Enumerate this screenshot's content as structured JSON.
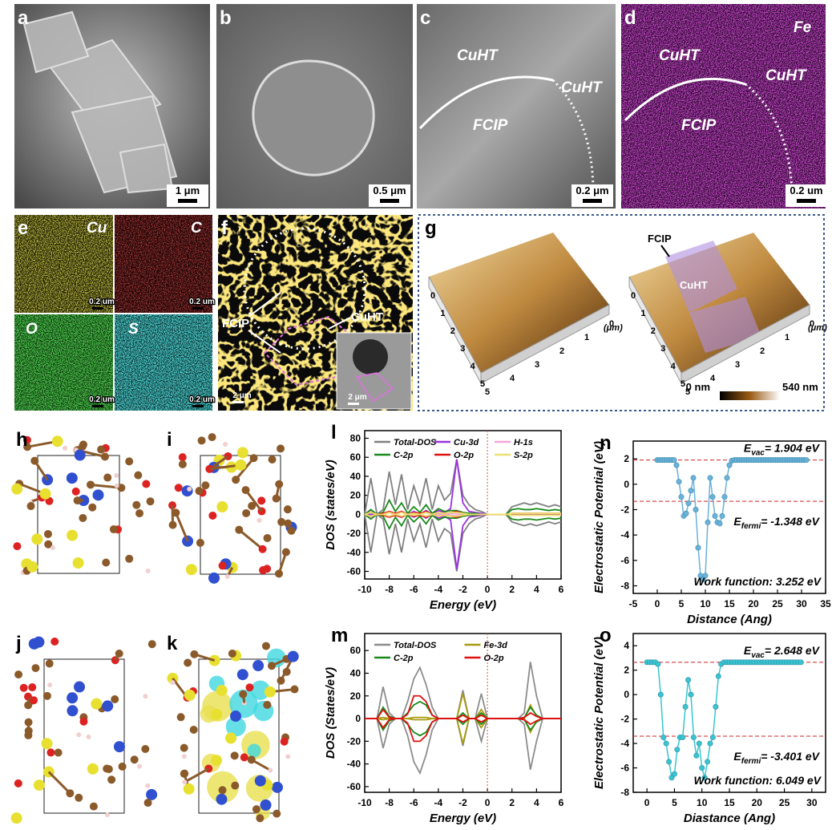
{
  "image_panels": [
    {
      "label": "a",
      "scales": [
        "1 μm"
      ]
    },
    {
      "label": "b",
      "scales": [
        "0.5 μm"
      ]
    },
    {
      "label": "c",
      "texts": [
        "CuHT",
        "CuHT",
        "FCIP"
      ],
      "scales": [
        "0.2 μm"
      ]
    },
    {
      "label": "d",
      "texts": [
        "Fe",
        "CuHT",
        "CuHT",
        "FCIP"
      ],
      "scales": [
        "0.2 um"
      ]
    },
    {
      "label": "e",
      "texts": [
        "Cu",
        "C",
        "O",
        "S"
      ],
      "scales": [
        "0.2 um",
        "0.2 um",
        "0.2 um",
        "0.2 um"
      ]
    },
    {
      "label": "f",
      "texts": [
        "FCIP",
        "CuHT"
      ],
      "scales": [
        "2 μm",
        "2 μm"
      ]
    },
    {
      "label": "g",
      "texts": [
        "FCIP",
        "CuHT",
        "(μm)",
        "(μm)",
        "0 nm",
        "540 nm"
      ],
      "axis_ticks": [
        "0",
        "1",
        "2",
        "3",
        "4",
        "5"
      ]
    },
    {
      "label": "h"
    },
    {
      "label": "i"
    },
    {
      "label": "j"
    },
    {
      "label": "k"
    }
  ],
  "chart_data": [
    {
      "type": "dos",
      "panel": "l",
      "xlabel": "Energy (eV)",
      "ylabel": "DOS (states/eV)",
      "xlim": [
        -10,
        6
      ],
      "xticks": [
        -10,
        -8,
        -6,
        -4,
        -2,
        0,
        2,
        4,
        6
      ],
      "ylim": [
        -68,
        88
      ],
      "yticks": [
        -60,
        -40,
        -20,
        0,
        20,
        40,
        60,
        80
      ],
      "reference_x": 0,
      "reference_color": "#e05050",
      "x": [
        -10,
        -9.5,
        -9,
        -8.5,
        -8,
        -7.5,
        -7,
        -6.5,
        -6,
        -5.5,
        -5,
        -4.5,
        -4,
        -3.5,
        -3,
        -2.5,
        -2,
        -1.5,
        -1,
        -0.5,
        0,
        0.5,
        1,
        1.5,
        2,
        2.5,
        3,
        3.5,
        4,
        4.5,
        5,
        5.5,
        6
      ],
      "series": [
        {
          "name": "Total-DOS",
          "color": "#808080",
          "values": [
            0,
            38,
            0,
            5,
            45,
            10,
            42,
            5,
            30,
            10,
            38,
            5,
            30,
            15,
            22,
            58,
            20,
            10,
            5,
            3,
            0,
            0,
            0,
            0,
            8,
            10,
            12,
            10,
            12,
            10,
            8,
            10,
            8
          ],
          "values_down": [
            0,
            -40,
            0,
            -5,
            -42,
            -10,
            -40,
            -5,
            -28,
            -10,
            -35,
            -5,
            -28,
            -15,
            -20,
            -60,
            -20,
            -10,
            -5,
            -3,
            0,
            0,
            0,
            0,
            -8,
            -10,
            -12,
            -10,
            -12,
            -10,
            -8,
            -10,
            -8
          ]
        },
        {
          "name": "Cu-3d",
          "color": "#9a32e0",
          "values": [
            0,
            0,
            0,
            0,
            2,
            0,
            3,
            0,
            3,
            0,
            4,
            0,
            4,
            2,
            6,
            58,
            12,
            3,
            2,
            1,
            0,
            0,
            0,
            0,
            0,
            0,
            0,
            0,
            0,
            0,
            0,
            0,
            0
          ],
          "values_down": [
            0,
            0,
            0,
            0,
            -2,
            0,
            -3,
            0,
            -3,
            0,
            -4,
            0,
            -4,
            -2,
            -6,
            -58,
            -12,
            -3,
            -2,
            -1,
            0,
            0,
            0,
            0,
            0,
            0,
            0,
            0,
            0,
            0,
            0,
            0,
            0
          ]
        },
        {
          "name": "H-1s",
          "color": "#f2a6dc",
          "values": [
            0,
            3,
            0,
            0,
            3,
            0,
            2,
            0,
            2,
            0,
            2,
            0,
            1,
            0,
            1,
            1,
            0,
            0,
            0,
            0,
            0,
            0,
            0,
            0,
            1,
            1,
            1,
            1,
            1,
            1,
            1,
            1,
            1
          ],
          "values_down": [
            0,
            -3,
            0,
            0,
            -3,
            0,
            -2,
            0,
            -2,
            0,
            -2,
            0,
            -1,
            0,
            -1,
            -1,
            0,
            0,
            0,
            0,
            0,
            0,
            0,
            0,
            -1,
            -1,
            -1,
            -1,
            -1,
            -1,
            -1,
            -1,
            -1
          ]
        },
        {
          "name": "C-2p",
          "color": "#1a8a1a",
          "values": [
            0,
            5,
            0,
            2,
            15,
            3,
            12,
            1,
            8,
            2,
            10,
            1,
            6,
            3,
            4,
            4,
            2,
            1,
            1,
            0,
            0,
            0,
            0,
            0,
            5,
            6,
            5,
            5,
            6,
            5,
            4,
            5,
            4
          ],
          "values_down": [
            0,
            -5,
            0,
            -2,
            -15,
            -3,
            -12,
            -1,
            -8,
            -2,
            -10,
            -1,
            -6,
            -3,
            -4,
            -4,
            -2,
            -1,
            -1,
            0,
            0,
            0,
            0,
            0,
            -5,
            -6,
            -5,
            -5,
            -6,
            -5,
            -4,
            -5,
            -4
          ]
        },
        {
          "name": "O-2p",
          "color": "#e01010",
          "values": [
            0,
            2,
            0,
            1,
            3,
            1,
            3,
            0,
            2,
            1,
            3,
            0,
            2,
            1,
            2,
            3,
            1,
            0,
            0,
            0,
            0,
            0,
            0,
            0,
            1,
            1,
            1,
            1,
            1,
            1,
            1,
            1,
            1
          ],
          "values_down": [
            0,
            -2,
            0,
            -1,
            -3,
            -1,
            -3,
            0,
            -2,
            -1,
            -3,
            0,
            -2,
            -1,
            -2,
            -3,
            -1,
            0,
            0,
            0,
            0,
            0,
            0,
            0,
            -1,
            -1,
            -1,
            -1,
            -1,
            -1,
            -1,
            -1,
            -1
          ]
        },
        {
          "name": "S-2p",
          "color": "#ece070",
          "values": [
            0,
            2,
            0,
            0,
            2,
            0,
            2,
            0,
            1,
            0,
            2,
            0,
            2,
            1,
            2,
            2,
            1,
            0,
            0,
            0,
            0,
            0,
            0,
            0,
            1,
            1,
            1,
            1,
            1,
            1,
            1,
            1,
            1
          ],
          "values_down": [
            0,
            -2,
            0,
            0,
            -2,
            0,
            -2,
            0,
            -1,
            0,
            -2,
            0,
            -2,
            -1,
            -2,
            -2,
            -1,
            0,
            0,
            0,
            0,
            0,
            0,
            0,
            -1,
            -1,
            -1,
            -1,
            -1,
            -1,
            -1,
            -1,
            -1
          ]
        }
      ]
    },
    {
      "type": "dos",
      "panel": "m",
      "xlabel": "Energy (eV)",
      "ylabel": "DOS (States/eV)",
      "xlim": [
        -10,
        6
      ],
      "xticks": [
        -10,
        -8,
        -6,
        -4,
        -2,
        0,
        2,
        4,
        6
      ],
      "ylim": [
        -65,
        75
      ],
      "yticks": [
        -60,
        -40,
        -20,
        0,
        20,
        40,
        60
      ],
      "reference_x": 0,
      "reference_color": "#e05050",
      "x": [
        -10,
        -9.5,
        -9,
        -8.5,
        -8,
        -7.5,
        -7,
        -6.5,
        -6,
        -5.5,
        -5,
        -4.5,
        -4,
        -3.5,
        -3,
        -2.5,
        -2,
        -1.5,
        -1,
        -0.5,
        0,
        0.5,
        1,
        1.5,
        2,
        2.5,
        3,
        3.5,
        4,
        4.5,
        5,
        5.5,
        6
      ],
      "series": [
        {
          "name": "Total-DOS",
          "color": "#8c8c8c",
          "values": [
            0,
            0,
            0,
            28,
            5,
            0,
            0,
            15,
            35,
            45,
            30,
            10,
            0,
            0,
            0,
            0,
            25,
            0,
            0,
            22,
            0,
            0,
            0,
            0,
            0,
            0,
            5,
            50,
            20,
            0,
            0,
            0,
            0
          ],
          "values_down": [
            0,
            0,
            0,
            -26,
            -5,
            0,
            0,
            -15,
            -38,
            -48,
            -32,
            -10,
            0,
            0,
            0,
            0,
            -24,
            0,
            0,
            -20,
            0,
            0,
            0,
            0,
            0,
            0,
            -5,
            -45,
            -20,
            0,
            0,
            0,
            0
          ]
        },
        {
          "name": "Fe-3d",
          "color": "#a89a10",
          "values": [
            0,
            0,
            0,
            1,
            0,
            0,
            0,
            0,
            1,
            1,
            1,
            0,
            0,
            0,
            0,
            0,
            22,
            0,
            0,
            8,
            0,
            0,
            0,
            0,
            0,
            0,
            0,
            12,
            2,
            0,
            0,
            0,
            0
          ],
          "values_down": [
            0,
            0,
            0,
            -1,
            0,
            0,
            0,
            0,
            -1,
            -1,
            -1,
            0,
            0,
            0,
            0,
            0,
            -22,
            0,
            0,
            -8,
            0,
            0,
            0,
            0,
            0,
            0,
            0,
            -12,
            -2,
            0,
            0,
            0,
            0
          ]
        },
        {
          "name": "C-2p",
          "color": "#1a8a1a",
          "values": [
            0,
            0,
            0,
            10,
            2,
            0,
            0,
            5,
            12,
            15,
            12,
            3,
            0,
            0,
            0,
            0,
            5,
            0,
            0,
            5,
            0,
            0,
            0,
            0,
            0,
            0,
            1,
            10,
            3,
            0,
            0,
            0,
            0
          ],
          "values_down": [
            0,
            0,
            0,
            -10,
            -2,
            0,
            0,
            -5,
            -12,
            -15,
            -12,
            -3,
            0,
            0,
            0,
            0,
            -5,
            0,
            0,
            -5,
            0,
            0,
            0,
            0,
            0,
            0,
            -1,
            -10,
            -3,
            0,
            0,
            0,
            0
          ]
        },
        {
          "name": "O-2p",
          "color": "#e01010",
          "values": [
            0,
            0,
            0,
            8,
            1,
            0,
            0,
            4,
            20,
            20,
            15,
            3,
            0,
            0,
            0,
            0,
            3,
            0,
            0,
            3,
            0,
            0,
            0,
            0,
            0,
            0,
            1,
            5,
            2,
            0,
            0,
            0,
            0
          ],
          "values_down": [
            0,
            0,
            0,
            -8,
            -1,
            0,
            0,
            -4,
            -20,
            -20,
            -15,
            -3,
            0,
            0,
            0,
            0,
            -3,
            0,
            0,
            -3,
            0,
            0,
            0,
            0,
            0,
            0,
            -1,
            -5,
            -2,
            0,
            0,
            0,
            0
          ]
        }
      ]
    },
    {
      "type": "potential",
      "panel": "n",
      "xlabel": "Distance (Ang)",
      "ylabel": "Electrostatic Potential (eV)",
      "xlim": [
        -5,
        35
      ],
      "xticks": [
        -5,
        0,
        5,
        10,
        15,
        20,
        25,
        30,
        35
      ],
      "ylim": [
        -8.6,
        3.4
      ],
      "yticks": [
        -8,
        -6,
        -4,
        -2,
        0,
        2
      ],
      "color": "#6ab2da",
      "reference_lines": [
        {
          "value": 1.904,
          "symbol": "E",
          "sub": "vac",
          "label": "= 1.904 eV"
        },
        {
          "value": -1.348,
          "symbol": "E",
          "sub": "fermi",
          "label": "= -1.348 eV"
        }
      ],
      "reference_color": "#d02020",
      "annotation": "Work function: 3.252 eV",
      "x": [
        0,
        0.5,
        1,
        1.5,
        2,
        2.5,
        3,
        3.5,
        4,
        4.5,
        5,
        5.5,
        6,
        6.5,
        7,
        7.5,
        8,
        8.5,
        9,
        9.5,
        10,
        10.5,
        11,
        11.5,
        12,
        12.5,
        13,
        13.5,
        14,
        14.5,
        15,
        15.5,
        16,
        16.5,
        17,
        17.5,
        18,
        18.5,
        19,
        19.5,
        20,
        20.5,
        21,
        21.5,
        22,
        22.5,
        23,
        23.5,
        24,
        24.5,
        25,
        25.5,
        26,
        26.5,
        27,
        27.5,
        28,
        28.5,
        29,
        29.5,
        30,
        30.5,
        31
      ],
      "values": [
        1.904,
        1.904,
        1.904,
        1.904,
        1.904,
        1.904,
        1.904,
        1.904,
        1.5,
        0.2,
        -1.0,
        -2.5,
        -2.3,
        -1.5,
        -0.5,
        0.5,
        -2,
        -5,
        -7.2,
        -7.5,
        -7.2,
        -3,
        0.5,
        -1,
        -2.5,
        -3,
        -3.1,
        -2.5,
        -1,
        0.5,
        1.5,
        1.85,
        1.904,
        1.904,
        1.904,
        1.904,
        1.904,
        1.904,
        1.904,
        1.904,
        1.904,
        1.904,
        1.904,
        1.904,
        1.904,
        1.904,
        1.904,
        1.904,
        1.904,
        1.904,
        1.904,
        1.904,
        1.904,
        1.904,
        1.904,
        1.904,
        1.904,
        1.904,
        1.904,
        1.904,
        1.904,
        1.904,
        1.904
      ]
    },
    {
      "type": "potential",
      "panel": "o",
      "xlabel": "Diastance (Ang)",
      "ylabel": "Electrostatic Potential (eV)",
      "xlim": [
        -2.5,
        32.5
      ],
      "xticks": [
        0,
        5,
        10,
        15,
        20,
        25,
        30
      ],
      "ylim": [
        -8,
        5
      ],
      "yticks": [
        -8,
        -6,
        -4,
        -2,
        0,
        2,
        4
      ],
      "color": "#36c6d0",
      "reference_lines": [
        {
          "value": 2.648,
          "symbol": "E",
          "sub": "vac",
          "label": "= 2.648 eV"
        },
        {
          "value": -3.401,
          "symbol": "E",
          "sub": "fermi",
          "label": "= -3.401 eV"
        }
      ],
      "reference_color": "#d02020",
      "annotation": "Work function: 6.049 eV",
      "x": [
        0,
        0.5,
        1,
        1.5,
        2,
        2.5,
        3,
        3.5,
        4,
        4.5,
        5,
        5.5,
        6,
        6.5,
        7,
        7.5,
        8,
        8.5,
        9,
        9.5,
        10,
        10.5,
        11,
        11.5,
        12,
        12.5,
        13,
        13.5,
        14,
        14.5,
        15,
        15.5,
        16,
        16.5,
        17,
        17.5,
        18,
        18.5,
        19,
        19.5,
        20,
        20.5,
        21,
        21.5,
        22,
        22.5,
        23,
        23.5,
        24,
        24.5,
        25,
        25.5,
        26,
        26.5,
        27,
        27.5,
        28
      ],
      "values": [
        2.648,
        2.648,
        2.648,
        2.648,
        2.5,
        0,
        -3.5,
        -4,
        -5.5,
        -6.8,
        -6.5,
        -4.5,
        -3.5,
        -3.5,
        -1,
        1.2,
        0,
        -3.5,
        -5,
        -4,
        -6,
        -6.8,
        -5.5,
        -4,
        -3.5,
        -1,
        1.5,
        2.5,
        2.648,
        2.648,
        2.648,
        2.648,
        2.648,
        2.648,
        2.648,
        2.648,
        2.648,
        2.648,
        2.648,
        2.648,
        2.648,
        2.648,
        2.648,
        2.648,
        2.648,
        2.648,
        2.648,
        2.648,
        2.648,
        2.648,
        2.648,
        2.648,
        2.648,
        2.648,
        2.648,
        2.648,
        2.648
      ]
    }
  ]
}
